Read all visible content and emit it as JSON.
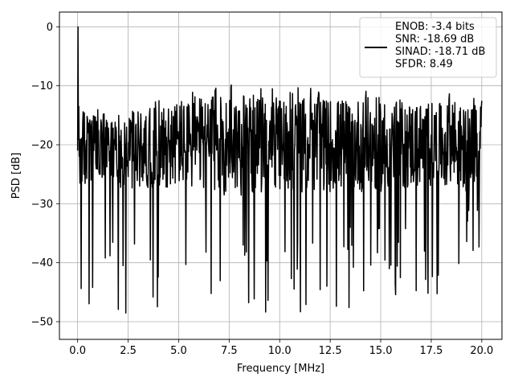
{
  "chart_data": {
    "type": "line",
    "title": "",
    "xlabel": "Frequency [MHz]",
    "ylabel": "PSD [dB]",
    "xlim": [
      -0.9,
      21.0
    ],
    "ylim": [
      -53.0,
      2.5
    ],
    "grid": true,
    "xticks": [
      0.0,
      2.5,
      5.0,
      7.5,
      10.0,
      12.5,
      15.0,
      17.5,
      20.0
    ],
    "xtick_labels": [
      "0.0",
      "2.5",
      "5.0",
      "7.5",
      "10.0",
      "12.5",
      "15.0",
      "17.5",
      "20.0"
    ],
    "yticks": [
      0,
      -10,
      -20,
      -30,
      -40,
      -50
    ],
    "ytick_labels": [
      "0",
      "−10",
      "−20",
      "−30",
      "−40",
      "−50"
    ],
    "legend": {
      "placement": "upper right",
      "entries": [
        "ENOB: -3.4 bits",
        "SNR: -18.69 dB",
        "SINAD: -18.71 dB",
        "SFDR: 8.49"
      ]
    },
    "series": [
      {
        "color": "#000000",
        "x_range": [
          0.0,
          20.0
        ],
        "points": 1024,
        "peak": {
          "x": 0.02,
          "y": 0.0
        },
        "noise_floor_envelope": {
          "x": [
            0.0,
            0.5,
            2.5,
            5.0,
            7.5,
            10.0,
            12.5,
            15.0,
            17.5,
            20.0
          ],
          "upper": [
            -11,
            -13,
            -13,
            -11,
            -9,
            -10,
            -10,
            -10,
            -11,
            -12
          ],
          "median": [
            -21,
            -21,
            -21,
            -20,
            -20,
            -20,
            -20,
            -20,
            -20,
            -21
          ],
          "lower": [
            -45,
            -48,
            -50,
            -47,
            -48,
            -49,
            -48,
            -48,
            -46,
            -40
          ]
        }
      }
    ]
  }
}
